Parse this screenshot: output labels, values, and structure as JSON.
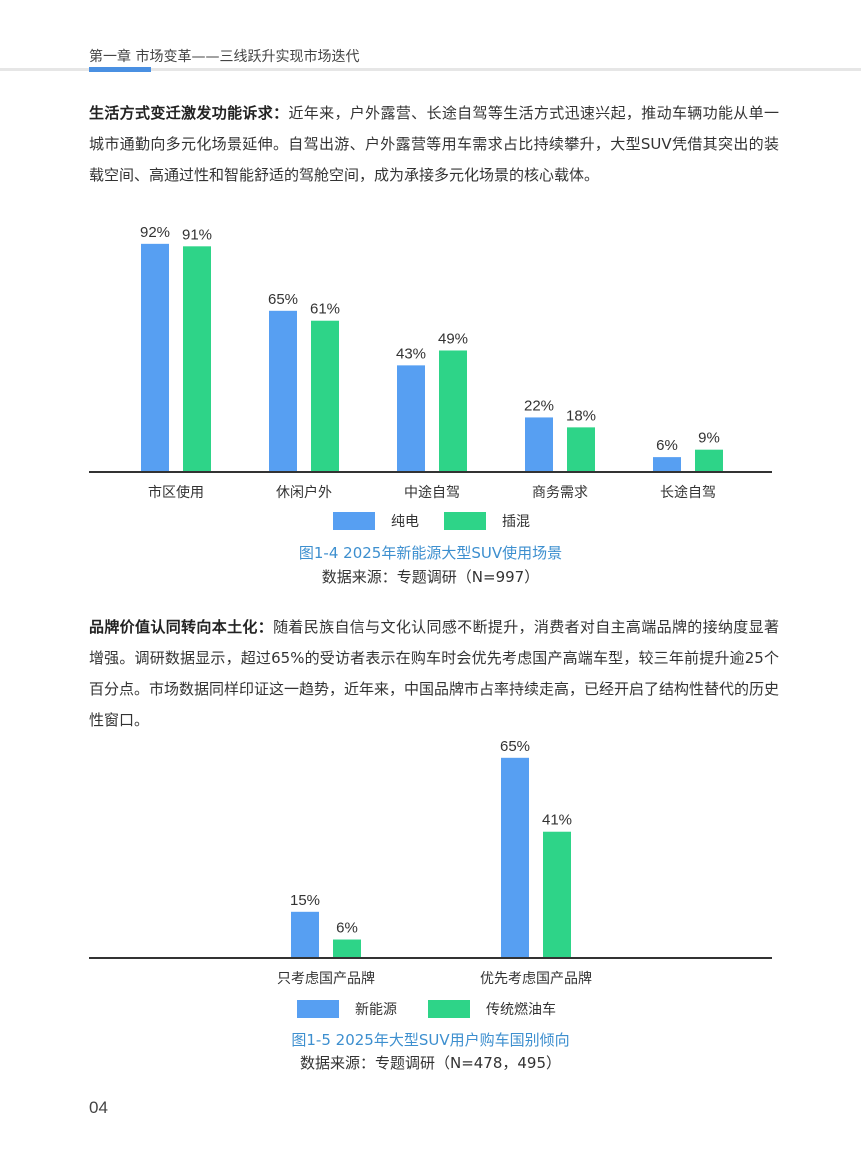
{
  "header": {
    "title": "第一章 市场变革——三线跃升实现市场迭代"
  },
  "para1": {
    "lead": "生活方式变迁激发功能诉求：",
    "body": "近年来，户外露营、长途自驾等生活方式迅速兴起，推动车辆功能从单一城市通勤向多元化场景延伸。自驾出游、户外露营等用车需求占比持续攀升，大型SUV凭借其突出的装载空间、高通过性和智能舒适的驾舱空间，成为承接多元化场景的核心载体。"
  },
  "para2": {
    "lead": "品牌价值认同转向本土化：",
    "body": "随着民族自信与文化认同感不断提升，消费者对自主高端品牌的接纳度显著增强。调研数据显示，超过65%的受访者表示在购车时会优先考虑国产高端车型，较三年前提升逾25个百分点。市场数据同样印证这一趋势，近年来，中国品牌市占率持续走高，已经开启了结构性替代的历史性窗口。"
  },
  "colors": {
    "blue": "#579ff2",
    "green": "#2ed488",
    "axis": "#333333"
  },
  "chart_data": [
    {
      "type": "bar",
      "title": "图1-4 2025年新能源大型SUV使用场景",
      "source": "数据来源：专题调研（N=997）",
      "categories": [
        "市区使用",
        "休闲户外",
        "中途自驾",
        "商务需求",
        "长途自驾"
      ],
      "series": [
        {
          "name": "纯电",
          "values": [
            92,
            65,
            43,
            22,
            6
          ],
          "labels": [
            "92%",
            "65%",
            "43%",
            "22%",
            "6%"
          ]
        },
        {
          "name": "插混",
          "values": [
            91,
            61,
            49,
            18,
            9
          ],
          "labels": [
            "91%",
            "61%",
            "49%",
            "18%",
            "9%"
          ]
        }
      ],
      "ylim": [
        0,
        100
      ],
      "grid": false,
      "legend": "bottom"
    },
    {
      "type": "bar",
      "title": "图1-5 2025年大型SUV用户购车国别倾向",
      "source": "数据来源：专题调研（N=478，495）",
      "categories": [
        "只考虑国产品牌",
        "优先考虑国产品牌"
      ],
      "series": [
        {
          "name": "新能源",
          "values": [
            15,
            65
          ],
          "labels": [
            "15%",
            "65%"
          ]
        },
        {
          "name": "传统燃油车",
          "values": [
            6,
            41
          ],
          "labels": [
            "6%",
            "41%"
          ]
        }
      ],
      "ylim": [
        0,
        100
      ],
      "grid": false,
      "legend": "bottom"
    }
  ],
  "page_number": "04"
}
